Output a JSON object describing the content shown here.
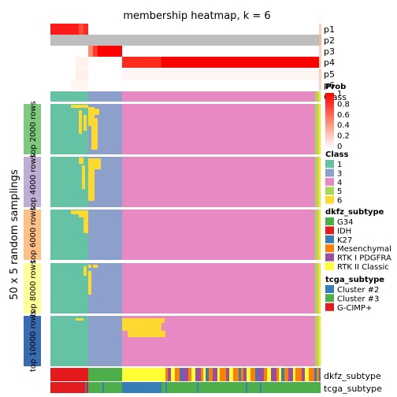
{
  "chart_data": {
    "type": "heatmap",
    "title": "membership heatmap, k = 6",
    "ylabel": "50 x 5 random samplings",
    "membership_rows": [
      "p1",
      "p2",
      "p3",
      "p4",
      "p5",
      "p6"
    ],
    "class_row_label": "Class",
    "row_groups": [
      "top 2000 rows",
      "top 4000 rows",
      "top 6000 rows",
      "top 8000 rows",
      "top 10000 rows"
    ],
    "annotation_rows": [
      "dkfz_subtype",
      "tcga_subtype"
    ],
    "legends": {
      "prob": {
        "title": "Prob",
        "ticks": [
          "1",
          "0.8",
          "0.6",
          "0.4",
          "0.2",
          "0"
        ],
        "range": [
          0,
          1
        ]
      },
      "class": {
        "title": "Class",
        "labels": [
          "1",
          "3",
          "4",
          "5",
          "6"
        ],
        "colors": [
          "#66c2a5",
          "#8da0cb",
          "#e78ac3",
          "#a6d854",
          "#ffd92f"
        ]
      },
      "dkfz_subtype": {
        "title": "dkfz_subtype",
        "labels": [
          "G34",
          "IDH",
          "K27",
          "Mesenchymal",
          "RTK I PDGFRA",
          "RTK II Classic"
        ],
        "colors": [
          "#4daf4a",
          "#e41a1c",
          "#377eb8",
          "#ff7f00",
          "#984ea3",
          "#ffff33"
        ]
      },
      "tcga_subtype": {
        "title": "tcga_subtype",
        "labels": [
          "Cluster #2",
          "Cluster #3",
          "G-CIMP+"
        ],
        "colors": [
          "#377eb8",
          "#4daf4a",
          "#e41a1c"
        ]
      }
    },
    "group_colors": [
      "#7fc97f",
      "#beaed4",
      "#fdc086",
      "#ffff99",
      "#386cb0"
    ]
  }
}
